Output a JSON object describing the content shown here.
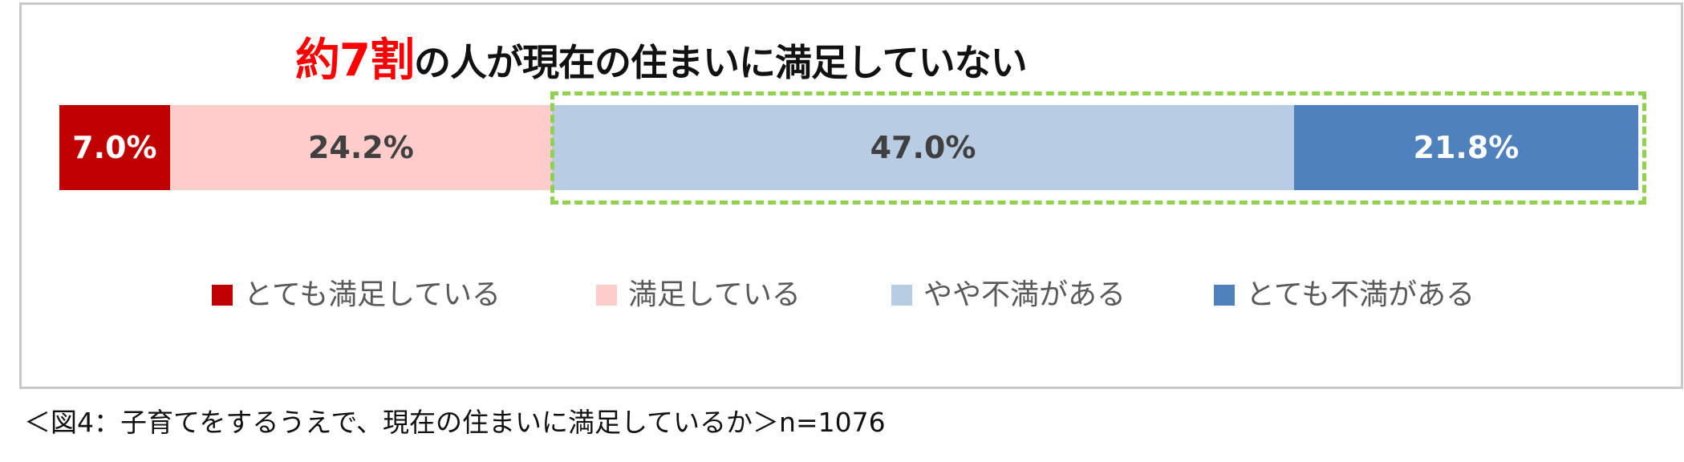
{
  "chart_data": {
    "type": "bar",
    "orientation": "horizontal-stacked-100",
    "title_highlight": "約7割",
    "title_rest": "の人が現在の住まいに満足していない",
    "series": [
      {
        "name": "とても満足している",
        "value": 7.0,
        "label": "7.0%",
        "color": "#c00000",
        "label_color": "#ffffff"
      },
      {
        "name": "満足している",
        "value": 24.2,
        "label": "24.2%",
        "color": "#ffcccc",
        "label_color": "#404040"
      },
      {
        "name": "やや不満がある",
        "value": 47.0,
        "label": "47.0%",
        "color": "#b8cce4",
        "label_color": "#404040"
      },
      {
        "name": "とても不満がある",
        "value": 21.8,
        "label": "21.8%",
        "color": "#4f81bd",
        "label_color": "#ffffff"
      }
    ],
    "highlight_box": {
      "covers": [
        "やや不満がある",
        "とても不満がある"
      ],
      "color": "#92d050",
      "style": "dashed"
    },
    "legend_position": "bottom",
    "caption": "＜図4：子育てをするうえで、現在の住まいに満足しているか＞n=1076"
  }
}
